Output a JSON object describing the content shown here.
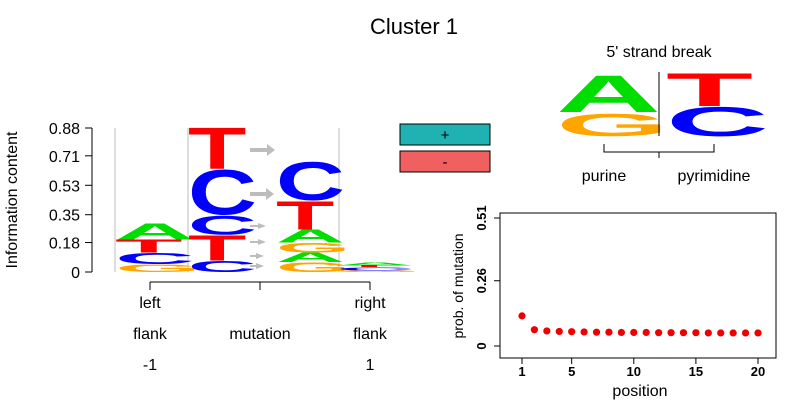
{
  "title": "Cluster 1",
  "colors": {
    "A": "#00dd00",
    "C": "#0000ff",
    "G": "#ffa500",
    "T": "#ff0000",
    "plus": "#20b2b2",
    "minus": "#f06060",
    "arrow": "#bdbdbd",
    "point": "#ee0000"
  },
  "strand_panel": {
    "title": "5' strand break",
    "left_label": "purine",
    "right_label": "pyrimidine",
    "left_letters": [
      "A",
      "G"
    ],
    "right_letters": [
      "T",
      "C"
    ]
  },
  "legend": {
    "plus": "+",
    "minus": "-"
  },
  "chart_data": [
    {
      "type": "sequence-logo",
      "ylabel": "Information content",
      "yticks": [
        "0",
        "0.18",
        "0.35",
        "0.53",
        "0.71",
        "0.88"
      ],
      "ylim": [
        0,
        0.88
      ],
      "x_groups": [
        {
          "label_lines": [
            "left",
            "flank",
            "-1"
          ]
        },
        {
          "label_lines": [
            "",
            "mutation",
            ""
          ]
        },
        {
          "label_lines": [
            "right",
            "flank",
            "1"
          ]
        }
      ],
      "columns": [
        {
          "name": "left-flank",
          "stack": [
            [
              "G",
              0.05
            ],
            [
              "C",
              0.07
            ],
            [
              "T",
              0.08
            ],
            [
              "A",
              0.1
            ]
          ]
        },
        {
          "name": "mutation-ref",
          "stack": [
            [
              "C",
              0.07
            ],
            [
              "T",
              0.16
            ],
            [
              "C",
              0.12
            ],
            [
              "C",
              0.28
            ],
            [
              "T",
              0.26
            ]
          ]
        },
        {
          "name": "mutation-alt",
          "stack": [
            [
              "G",
              0.06
            ],
            [
              "A",
              0.06
            ],
            [
              "G",
              0.06
            ],
            [
              "A",
              0.08
            ],
            [
              "T",
              0.18
            ],
            [
              "C",
              0.24
            ]
          ]
        },
        {
          "name": "right-flank",
          "stack": [
            [
              "G",
              0.01
            ],
            [
              "C",
              0.02
            ],
            [
              "T",
              0.01
            ],
            [
              "A",
              0.02
            ]
          ]
        }
      ]
    },
    {
      "type": "scatter",
      "xlabel": "position",
      "ylabel": "prob. of mutation",
      "xticks": [
        "1",
        "5",
        "10",
        "15",
        "20"
      ],
      "yticks": [
        "0",
        "0.26",
        "0.51"
      ],
      "xlim": [
        1,
        20
      ],
      "ylim": [
        0,
        0.51
      ],
      "x": [
        1,
        2,
        3,
        4,
        5,
        6,
        7,
        8,
        9,
        10,
        11,
        12,
        13,
        14,
        15,
        16,
        17,
        18,
        19,
        20
      ],
      "y": [
        0.12,
        0.065,
        0.06,
        0.058,
        0.057,
        0.056,
        0.055,
        0.055,
        0.054,
        0.054,
        0.054,
        0.053,
        0.053,
        0.053,
        0.053,
        0.052,
        0.052,
        0.052,
        0.052,
        0.052
      ]
    }
  ]
}
